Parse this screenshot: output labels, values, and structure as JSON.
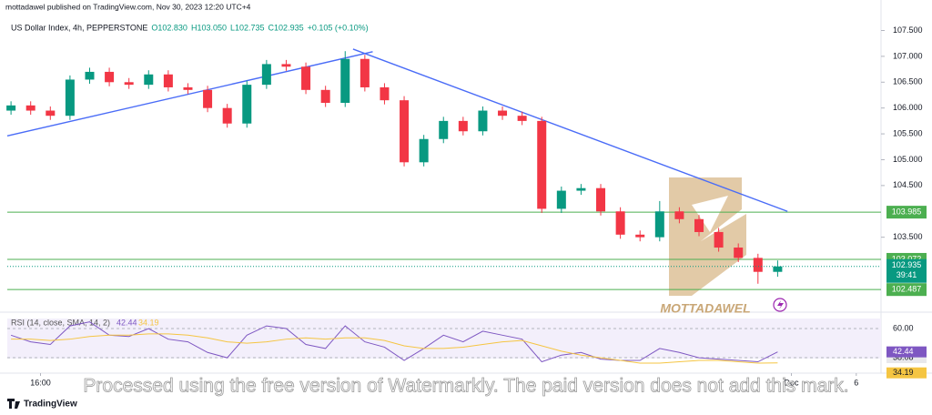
{
  "chart_data": {
    "type": "candlestick",
    "publisher": "mottadawel published on TradingView.com, Nov 30, 2023 12:20 UTC+4",
    "title": "US Dollar Index, 4h, PEPPERSTONE",
    "ohlc_legend": [
      "O102.830",
      "H103.050",
      "L102.735",
      "C102.935",
      "+0.105 (+0.10%)"
    ],
    "up_color": "#089981",
    "down_color": "#f23645",
    "open": [
      105.95,
      106.05,
      105.95,
      105.85,
      106.55,
      106.7,
      106.5,
      106.45,
      106.65,
      106.4,
      106.35,
      106.0,
      105.7,
      106.45,
      106.85,
      106.8,
      106.35,
      106.1,
      106.95,
      106.4,
      106.15,
      104.95,
      105.4,
      105.75,
      105.55,
      105.95,
      105.85,
      105.75,
      104.05,
      104.4,
      104.45,
      104.0,
      103.55,
      103.5,
      104.0,
      103.85,
      103.6,
      103.3,
      103.1,
      102.83
    ],
    "high": [
      106.13,
      106.13,
      106.03,
      106.63,
      106.78,
      106.78,
      106.58,
      106.73,
      106.73,
      106.48,
      106.43,
      106.08,
      106.53,
      106.93,
      106.93,
      106.88,
      106.43,
      107.1,
      107.03,
      106.48,
      106.23,
      105.48,
      105.83,
      105.83,
      106.03,
      106.03,
      105.93,
      105.83,
      104.48,
      104.53,
      104.53,
      104.08,
      103.63,
      104.2,
      104.08,
      103.93,
      103.68,
      103.38,
      103.18,
      103.05
    ],
    "low": [
      105.87,
      105.87,
      105.77,
      105.77,
      106.47,
      106.42,
      106.37,
      106.37,
      106.32,
      106.27,
      105.92,
      105.62,
      105.62,
      106.37,
      106.72,
      106.27,
      106.02,
      106.02,
      106.32,
      106.07,
      104.87,
      104.87,
      105.32,
      105.47,
      105.47,
      105.77,
      105.67,
      103.97,
      103.97,
      104.32,
      103.92,
      103.47,
      103.42,
      103.42,
      103.77,
      103.52,
      103.22,
      103.02,
      102.6,
      102.735
    ],
    "close": [
      106.05,
      105.95,
      105.85,
      106.55,
      106.7,
      106.5,
      106.45,
      106.65,
      106.4,
      106.35,
      106.0,
      105.7,
      106.45,
      106.85,
      106.8,
      106.35,
      106.1,
      106.95,
      106.4,
      106.15,
      104.95,
      105.4,
      105.75,
      105.55,
      105.95,
      105.85,
      105.75,
      104.05,
      104.4,
      104.45,
      104.0,
      103.55,
      103.5,
      104.0,
      103.85,
      103.6,
      103.3,
      103.1,
      102.83,
      102.935
    ],
    "xlim": [
      -0.19,
      44.26
    ],
    "xticks": [
      {
        "value": 1.5,
        "label": "16:00"
      },
      {
        "value": 39.7,
        "label": "Dec"
      },
      {
        "value": 43,
        "label": "6"
      }
    ],
    "ylim": [
      102.05,
      108.09
    ],
    "yticks": [
      {
        "value": 107.5,
        "label": "107.500"
      },
      {
        "value": 107,
        "label": "107.000"
      },
      {
        "value": 106.5,
        "label": "106.500"
      },
      {
        "value": 106,
        "label": "106.000"
      },
      {
        "value": 105.5,
        "label": "105.500"
      },
      {
        "value": 105,
        "label": "105.000"
      },
      {
        "value": 104.5,
        "label": "104.500"
      },
      {
        "value": 103.5,
        "label": "103.500"
      }
    ],
    "levels": [
      {
        "value": 103.985,
        "color": "#4caf50"
      },
      {
        "value": 103.072,
        "color": "#4caf50"
      },
      {
        "value": 102.487,
        "color": "#4caf50"
      }
    ],
    "current_price": {
      "value": 102.935,
      "countdown": "39:41",
      "color": "#089981"
    },
    "trendlines": [
      {
        "x": [
          -0.19,
          18.4
        ],
        "y": [
          105.46,
          107.09
        ],
        "color": "#4a6cf7"
      },
      {
        "x": [
          17.4,
          39.5
        ],
        "y": [
          107.14,
          104.0
        ],
        "color": "#4a6cf7"
      }
    ],
    "rsi": {
      "label": "RSI (14, close, SMA, 14, 2)",
      "ylim": [
        33.3,
        68.9
      ],
      "yticks": [
        {
          "value": 60,
          "label": "60.00"
        },
        38.08
      ],
      "series": [
        {
          "color": "#7e57c2",
          "values": [
            55,
            50,
            48,
            62,
            65,
            55,
            54,
            60,
            52,
            50,
            42,
            38,
            55,
            62,
            60,
            48,
            45,
            62,
            50,
            46,
            36,
            45,
            55,
            50,
            58,
            55,
            52,
            35,
            40,
            42,
            37,
            36,
            36,
            45,
            42,
            38,
            37,
            36,
            35,
            42.44
          ]
        },
        {
          "color": "#f5c542",
          "values": [
            52,
            52,
            51,
            52,
            54,
            55,
            55,
            56,
            56,
            55,
            53,
            50,
            49,
            50,
            52,
            53,
            52,
            53,
            53,
            51,
            47,
            45,
            45,
            46,
            48,
            50,
            51,
            47,
            43,
            40,
            38,
            36,
            34,
            34,
            35,
            36,
            36,
            35,
            34,
            34.19
          ]
        }
      ]
    },
    "watermark_logo": "MOTTADAWEL",
    "watermark_text": "Processed using the free version of Watermarkly. The paid version does not add this mark.",
    "footer": "TradingView"
  }
}
